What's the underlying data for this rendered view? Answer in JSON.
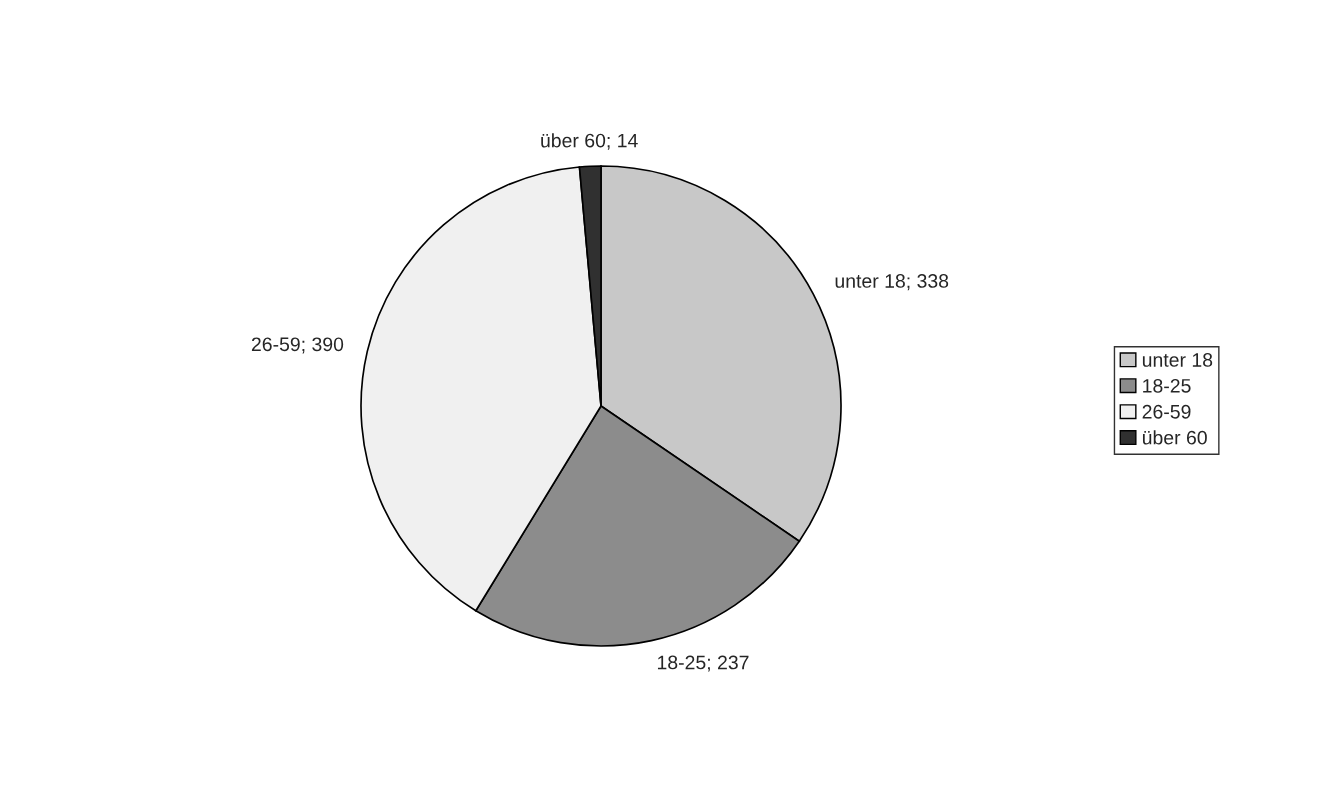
{
  "chart_data": {
    "type": "pie",
    "categories": [
      "unter 18",
      "18-25",
      "26-59",
      "über 60"
    ],
    "values": [
      338,
      237,
      390,
      14
    ],
    "colors": [
      "#c8c8c8",
      "#8c8c8c",
      "#f0f0f0",
      "#303030"
    ],
    "value_labels": [
      "unter 18; 338",
      "18-25; 237",
      "26-59; 390",
      "über 60; 14"
    ],
    "legend": "right"
  }
}
